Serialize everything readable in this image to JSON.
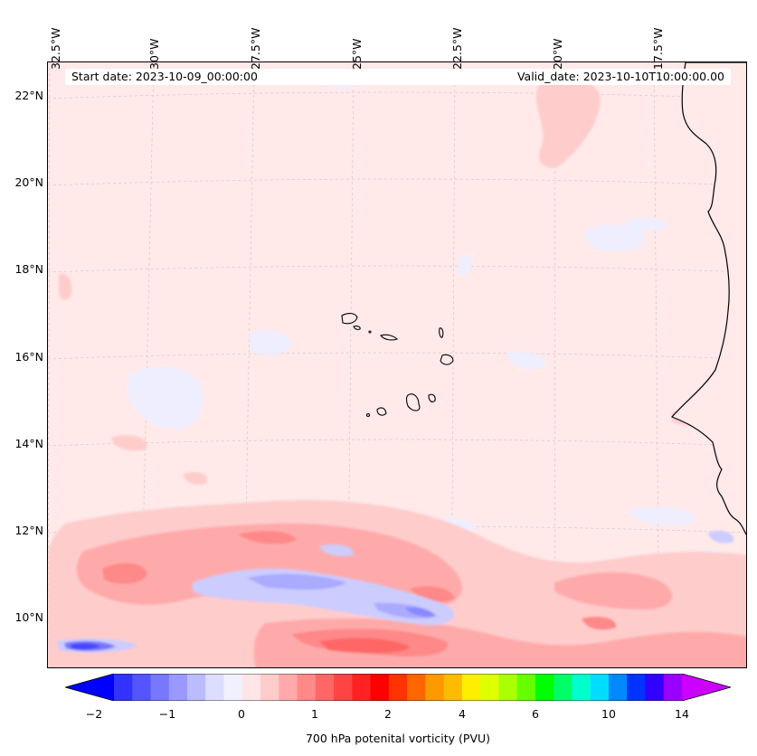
{
  "map": {
    "projection": "lambert-conformal",
    "start_date": "Start date: 2023-10-09_00:00:00",
    "valid_date": "Valid_date: 2023-10-10T10:00:00.00",
    "lon_labels": [
      "32.5°W",
      "30°W",
      "27.5°W",
      "25°W",
      "22.5°W",
      "20°W",
      "17.5°W"
    ],
    "lat_labels": [
      "22°N",
      "20°N",
      "18°N",
      "16°N",
      "14°N",
      "12°N",
      "10°N"
    ],
    "field": "700 hPa potential vorticity",
    "background_color": "#ffe9e9",
    "coastline_color": "#000000",
    "gridlines": true
  },
  "colorbar": {
    "label": "700 hPa potenital vorticity (PVU)",
    "tick_labels": [
      "−2",
      "−1",
      "0",
      "1",
      "2",
      "4",
      "6",
      "10",
      "14"
    ],
    "colors": [
      "#0000ff",
      "#3333ff",
      "#5555ff",
      "#7777ff",
      "#9999ff",
      "#bbbbff",
      "#ddddff",
      "#f0f0ff",
      "#ffe5e5",
      "#ffcccc",
      "#ffaaaa",
      "#ff8888",
      "#ff6666",
      "#ff4444",
      "#ff2222",
      "#ff0000",
      "#ff3300",
      "#ff6600",
      "#ff9900",
      "#ffbb00",
      "#ffee00",
      "#ddff00",
      "#aaff00",
      "#66ff00",
      "#00ff00",
      "#00ff66",
      "#00ffcc",
      "#00ddff",
      "#0088ff",
      "#0033ff",
      "#3300ff",
      "#9900ff",
      "#cc00ff"
    ]
  }
}
